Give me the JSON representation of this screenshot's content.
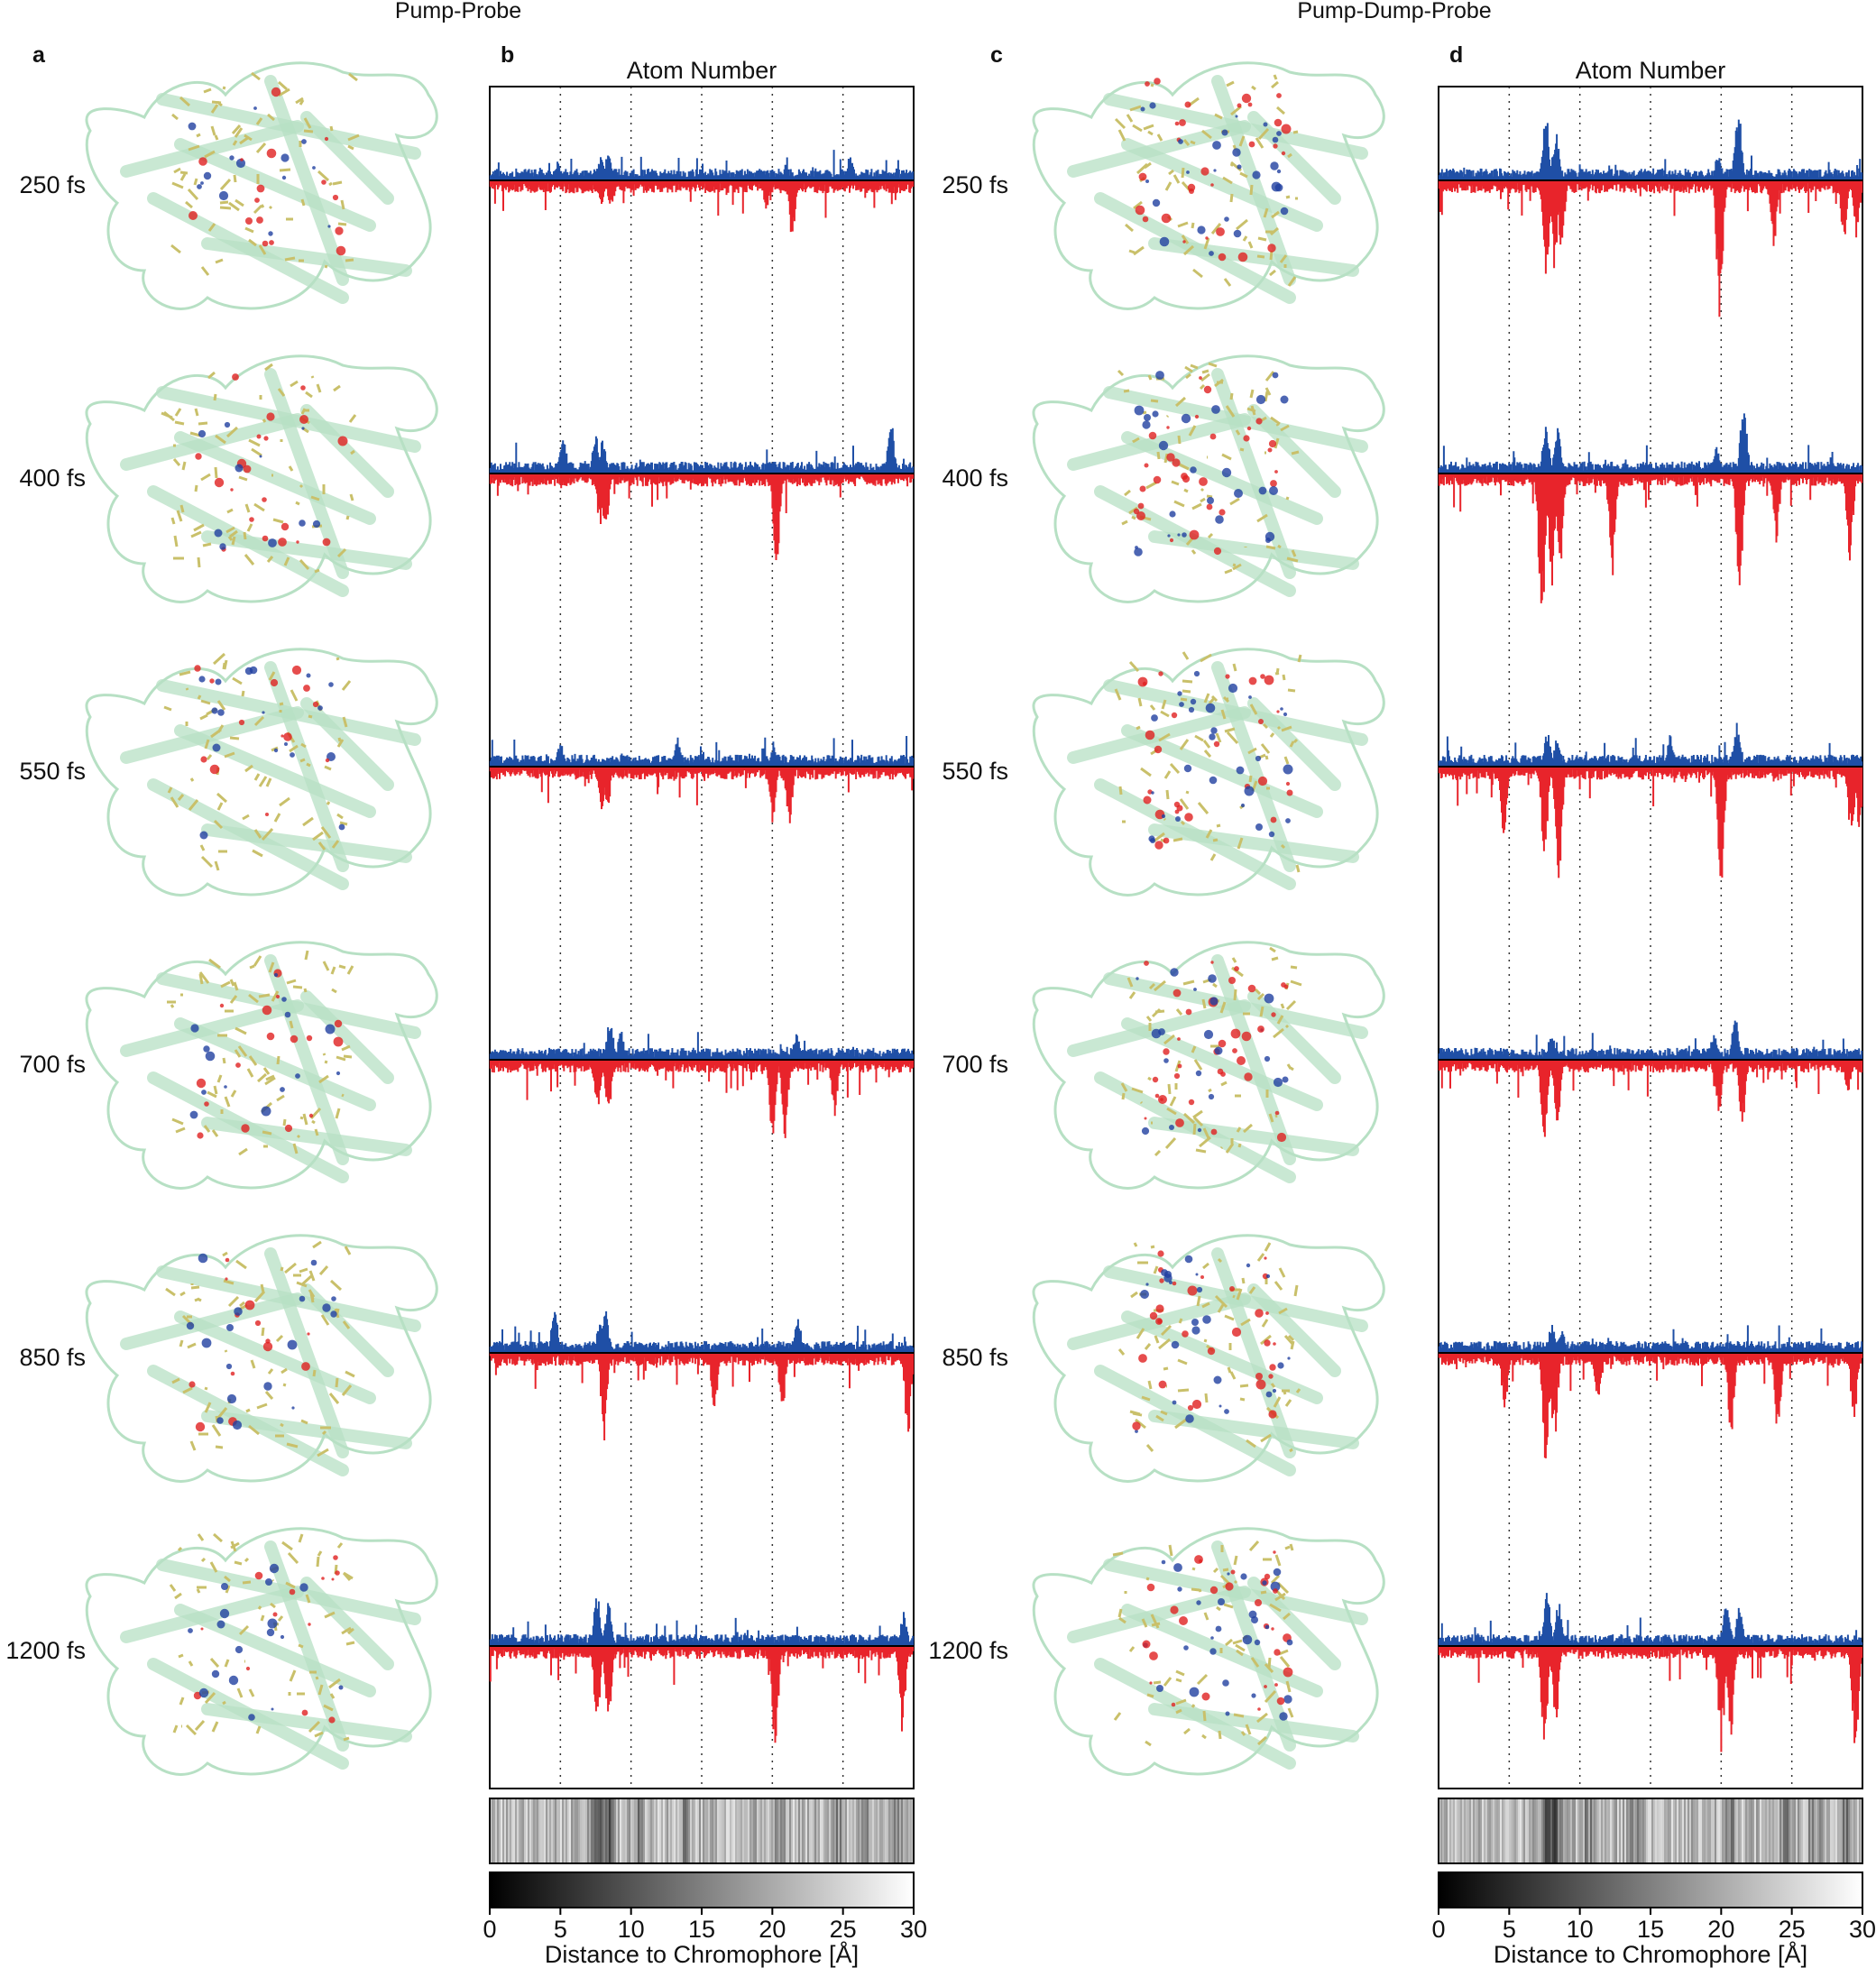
{
  "figure": {
    "left_heading": "Pump-Probe",
    "right_heading": "Pump-Dump-Probe"
  },
  "panels": {
    "a": "a",
    "b": "b",
    "c": "c",
    "d": "d"
  },
  "time_labels": [
    "250 fs",
    "400 fs",
    "550 fs",
    "700 fs",
    "850 fs",
    "1200 fs"
  ],
  "structure_image": {
    "description_icon": "protein-beta-barrel-structure",
    "colors": {
      "ribbon": "#b7e0c4",
      "stick": "#c9c06a",
      "positive_density": "#2040a0",
      "negative_density": "#e02020"
    }
  },
  "colors": {
    "positive": "#1f4fa6",
    "negative": "#e8242b",
    "baseline": "#000000",
    "grid": "#333333"
  },
  "chart_data": [
    {
      "panel": "b",
      "type": "bar",
      "title": "Atom Number",
      "xlabel": "Distance to Chromophore [Å]",
      "x_ticks": [
        0,
        5,
        10,
        15,
        20,
        25,
        30
      ],
      "xlim": [
        0,
        30
      ],
      "dotted_gridlines_x": [
        5,
        10,
        15,
        20,
        25
      ],
      "rows": [
        "250 fs",
        "400 fs",
        "550 fs",
        "700 fs",
        "850 fs",
        "1200 fs"
      ],
      "series": [
        {
          "row": "250 fs",
          "positive_peaks": [
            [
              4.8,
              0.2
            ],
            [
              7.9,
              0.25
            ],
            [
              8.4,
              0.3
            ],
            [
              25.5,
              0.25
            ]
          ],
          "negative_peaks": [
            [
              7.9,
              0.25
            ],
            [
              8.6,
              0.3
            ],
            [
              19.6,
              0.3
            ],
            [
              21.4,
              0.6
            ]
          ]
        },
        {
          "row": "400 fs",
          "positive_peaks": [
            [
              5.2,
              0.45
            ],
            [
              7.5,
              0.4
            ],
            [
              8.0,
              0.35
            ],
            [
              28.4,
              0.55
            ]
          ],
          "negative_peaks": [
            [
              7.8,
              0.55
            ],
            [
              8.2,
              0.6
            ],
            [
              20.3,
              1.1
            ]
          ]
        },
        {
          "row": "550 fs",
          "positive_peaks": [
            [
              5.0,
              0.25
            ],
            [
              13.3,
              0.35
            ],
            [
              20.1,
              0.2
            ]
          ],
          "negative_peaks": [
            [
              7.9,
              0.45
            ],
            [
              8.3,
              0.5
            ],
            [
              20.0,
              0.6
            ],
            [
              21.2,
              0.6
            ]
          ]
        },
        {
          "row": "700 fs",
          "positive_peaks": [
            [
              8.5,
              0.4
            ],
            [
              9.3,
              0.3
            ],
            [
              21.7,
              0.3
            ]
          ],
          "negative_peaks": [
            [
              7.6,
              0.55
            ],
            [
              8.4,
              0.55
            ],
            [
              20.0,
              0.85
            ],
            [
              20.9,
              0.8
            ],
            [
              24.4,
              0.6
            ]
          ]
        },
        {
          "row": "850 fs",
          "positive_peaks": [
            [
              4.6,
              0.5
            ],
            [
              7.8,
              0.35
            ],
            [
              8.2,
              0.45
            ],
            [
              21.8,
              0.4
            ]
          ],
          "negative_peaks": [
            [
              8.1,
              0.9
            ],
            [
              15.9,
              0.6
            ],
            [
              20.7,
              0.6
            ],
            [
              29.6,
              0.85
            ]
          ]
        },
        {
          "row": "1200 fs",
          "positive_peaks": [
            [
              7.6,
              0.55
            ],
            [
              8.4,
              0.45
            ],
            [
              29.3,
              0.35
            ]
          ],
          "negative_peaks": [
            [
              7.6,
              0.85
            ],
            [
              8.4,
              0.85
            ],
            [
              20.2,
              1.1
            ],
            [
              29.2,
              0.9
            ]
          ]
        }
      ],
      "colorbar": {
        "range": [
          0,
          30
        ],
        "cmap": "gray",
        "label": "Distance to Chromophore [Å]"
      }
    },
    {
      "panel": "d",
      "type": "bar",
      "title": "Atom Number",
      "xlabel": "Distance to Chromophore [Å]",
      "x_ticks": [
        0,
        5,
        10,
        15,
        20,
        25,
        30
      ],
      "xlim": [
        0,
        30
      ],
      "dotted_gridlines_x": [
        5,
        10,
        15,
        20,
        25
      ],
      "rows": [
        "250 fs",
        "400 fs",
        "550 fs",
        "700 fs",
        "850 fs",
        "1200 fs"
      ],
      "series": [
        {
          "row": "250 fs",
          "positive_peaks": [
            [
              7.6,
              0.7
            ],
            [
              8.3,
              0.5
            ],
            [
              21.2,
              0.8
            ],
            [
              19.8,
              0.3
            ]
          ],
          "negative_peaks": [
            [
              7.6,
              1.0
            ],
            [
              8.2,
              0.9
            ],
            [
              8.7,
              0.7
            ],
            [
              19.9,
              1.4
            ],
            [
              23.7,
              0.7
            ],
            [
              28.7,
              0.6
            ],
            [
              29.6,
              0.6
            ]
          ]
        },
        {
          "row": "400 fs",
          "positive_peaks": [
            [
              7.6,
              0.6
            ],
            [
              8.4,
              0.5
            ],
            [
              21.6,
              0.85
            ],
            [
              19.7,
              0.3
            ]
          ],
          "negative_peaks": [
            [
              7.3,
              1.6
            ],
            [
              8.0,
              1.2
            ],
            [
              8.6,
              0.95
            ],
            [
              12.3,
              1.1
            ],
            [
              21.3,
              1.25
            ],
            [
              23.9,
              0.7
            ],
            [
              29.1,
              0.95
            ]
          ]
        },
        {
          "row": "550 fs",
          "positive_peaks": [
            [
              7.7,
              0.35
            ],
            [
              8.4,
              0.3
            ],
            [
              21.1,
              0.45
            ],
            [
              16.4,
              0.35
            ]
          ],
          "negative_peaks": [
            [
              4.6,
              0.7
            ],
            [
              7.5,
              0.95
            ],
            [
              8.5,
              1.25
            ],
            [
              20.0,
              1.3
            ],
            [
              29.2,
              0.75
            ],
            [
              29.8,
              0.7
            ]
          ]
        },
        {
          "row": "700 fs",
          "positive_peaks": [
            [
              8.0,
              0.3
            ],
            [
              21.0,
              0.45
            ],
            [
              19.5,
              0.3
            ]
          ],
          "negative_peaks": [
            [
              7.5,
              0.9
            ],
            [
              8.4,
              0.7
            ],
            [
              19.8,
              0.6
            ],
            [
              21.5,
              0.65
            ],
            [
              29.0,
              0.35
            ]
          ]
        },
        {
          "row": "850 fs",
          "positive_peaks": [
            [
              8.0,
              0.3
            ],
            [
              8.7,
              0.25
            ]
          ],
          "negative_peaks": [
            [
              4.7,
              0.6
            ],
            [
              7.6,
              1.15
            ],
            [
              8.2,
              0.95
            ],
            [
              11.3,
              0.55
            ],
            [
              20.7,
              0.85
            ],
            [
              24.0,
              0.85
            ],
            [
              29.4,
              0.7
            ]
          ]
        },
        {
          "row": "1200 fs",
          "positive_peaks": [
            [
              7.7,
              0.55
            ],
            [
              8.5,
              0.45
            ],
            [
              20.4,
              0.5
            ],
            [
              21.3,
              0.45
            ]
          ],
          "negative_peaks": [
            [
              7.5,
              1.05
            ],
            [
              8.3,
              0.8
            ],
            [
              20.0,
              1.1
            ],
            [
              20.7,
              0.9
            ],
            [
              29.5,
              1.15
            ]
          ]
        }
      ],
      "colorbar": {
        "range": [
          0,
          30
        ],
        "cmap": "gray",
        "label": "Distance to Chromophore [Å]"
      }
    }
  ]
}
